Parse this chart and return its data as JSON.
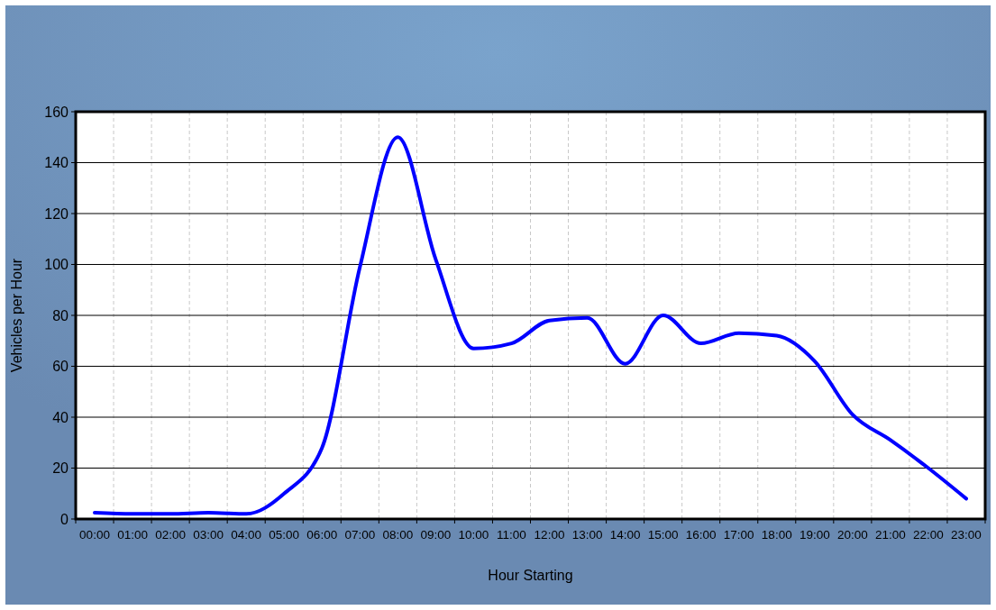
{
  "chart_data": {
    "type": "line",
    "xlabel": "Hour Starting",
    "ylabel": "Vehicles per Hour",
    "categories": [
      "00:00",
      "01:00",
      "02:00",
      "03:00",
      "04:00",
      "05:00",
      "06:00",
      "07:00",
      "08:00",
      "09:00",
      "10:00",
      "11:00",
      "12:00",
      "13:00",
      "14:00",
      "15:00",
      "16:00",
      "17:00",
      "18:00",
      "19:00",
      "20:00",
      "21:00",
      "22:00",
      "23:00"
    ],
    "series": [
      {
        "color": "#0000ff",
        "values": [
          2.5,
          2,
          2,
          2.5,
          2,
          10,
          28,
          99,
          150,
          102,
          67,
          69,
          78,
          79,
          61,
          80,
          69,
          73,
          72,
          62,
          41,
          31,
          20,
          8
        ]
      }
    ],
    "ylim": [
      0,
      160
    ],
    "yticks": [
      0,
      20,
      40,
      60,
      80,
      100,
      120,
      140,
      160
    ],
    "grid": true
  }
}
